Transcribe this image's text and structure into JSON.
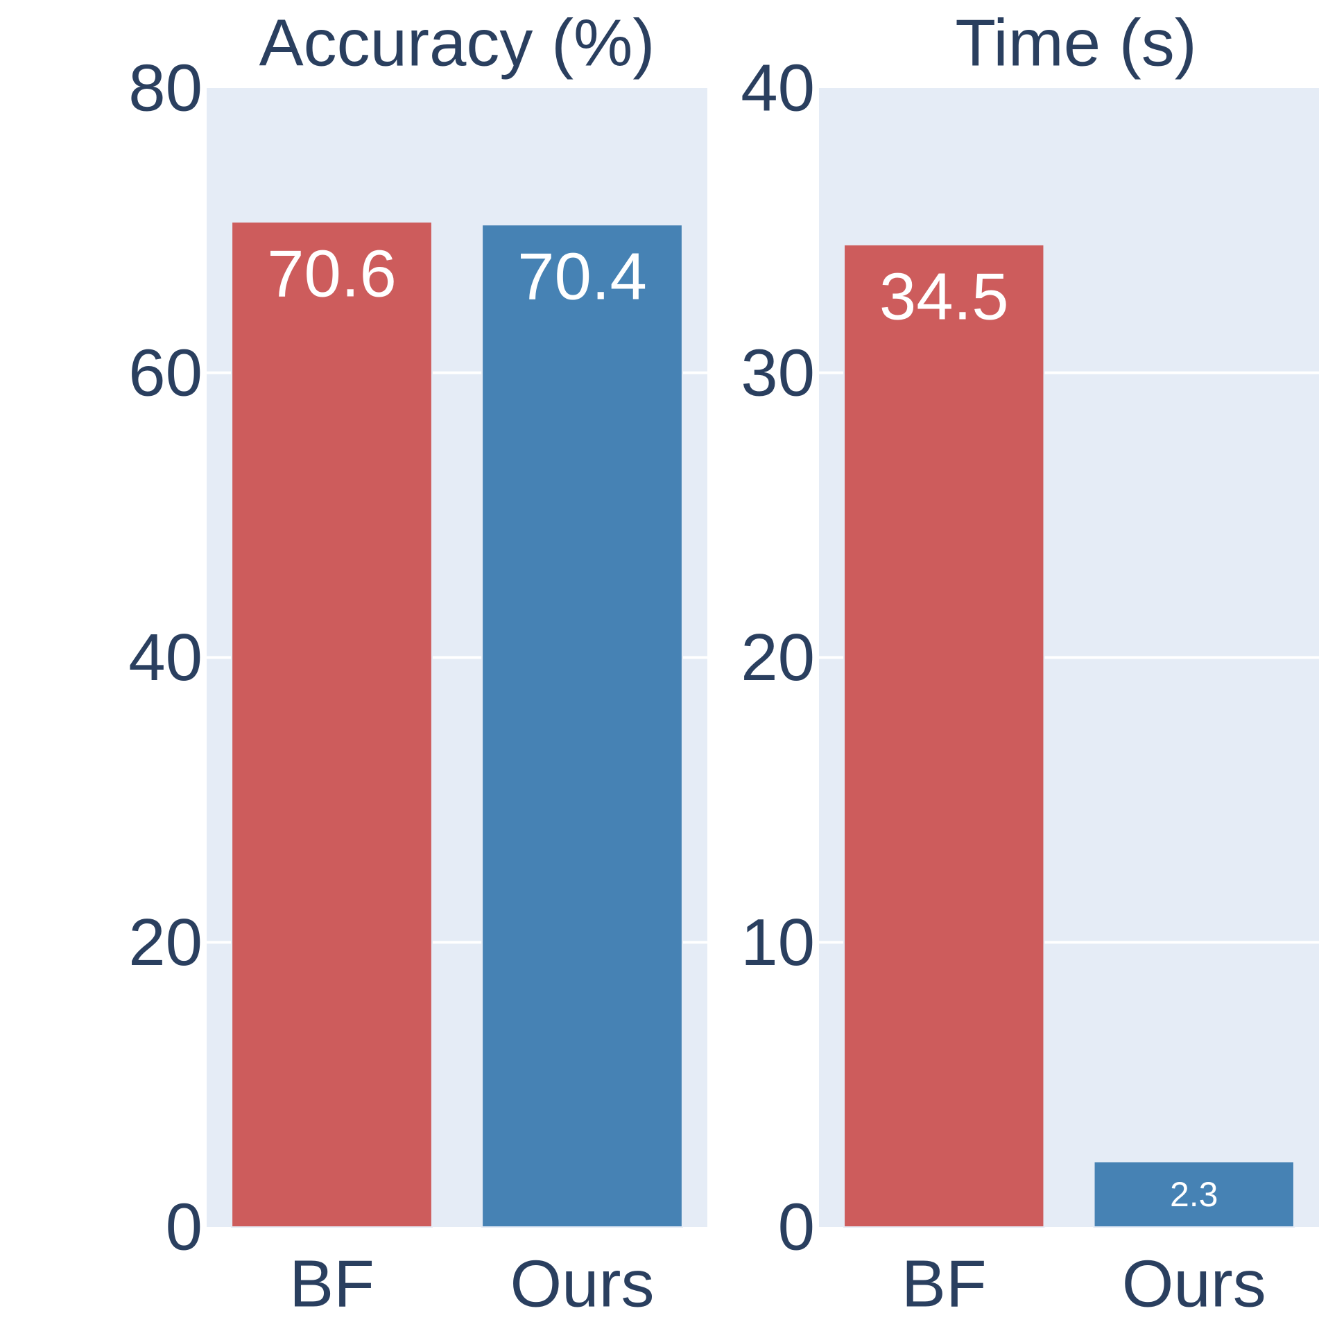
{
  "colors": {
    "plot_background": "#e5ecf6",
    "grid": "#ffffff",
    "text": "#2a3f5f",
    "bar_label": "#ffffff"
  },
  "chart_data": [
    {
      "type": "bar",
      "title": "Accuracy (%)",
      "categories": [
        "BF",
        "Ours"
      ],
      "values": [
        70.6,
        70.4
      ],
      "data_labels": [
        "70.6",
        "70.4"
      ],
      "bar_colors": [
        "#cd5c5c",
        "#4682b4"
      ],
      "ylim": [
        0,
        80
      ],
      "yticks": [
        0,
        20,
        40,
        60,
        80
      ],
      "ytick_labels": [
        "0",
        "20",
        "40",
        "60",
        "80"
      ],
      "grid": true
    },
    {
      "type": "bar",
      "title": "Time (s)",
      "categories": [
        "BF",
        "Ours"
      ],
      "values": [
        34.5,
        2.3
      ],
      "data_labels": [
        "34.5",
        "2.3"
      ],
      "bar_colors": [
        "#cd5c5c",
        "#4682b4"
      ],
      "ylim": [
        0,
        40
      ],
      "yticks": [
        0,
        10,
        20,
        30,
        40
      ],
      "ytick_labels": [
        "0",
        "10",
        "20",
        "30",
        "40"
      ],
      "grid": true
    }
  ]
}
